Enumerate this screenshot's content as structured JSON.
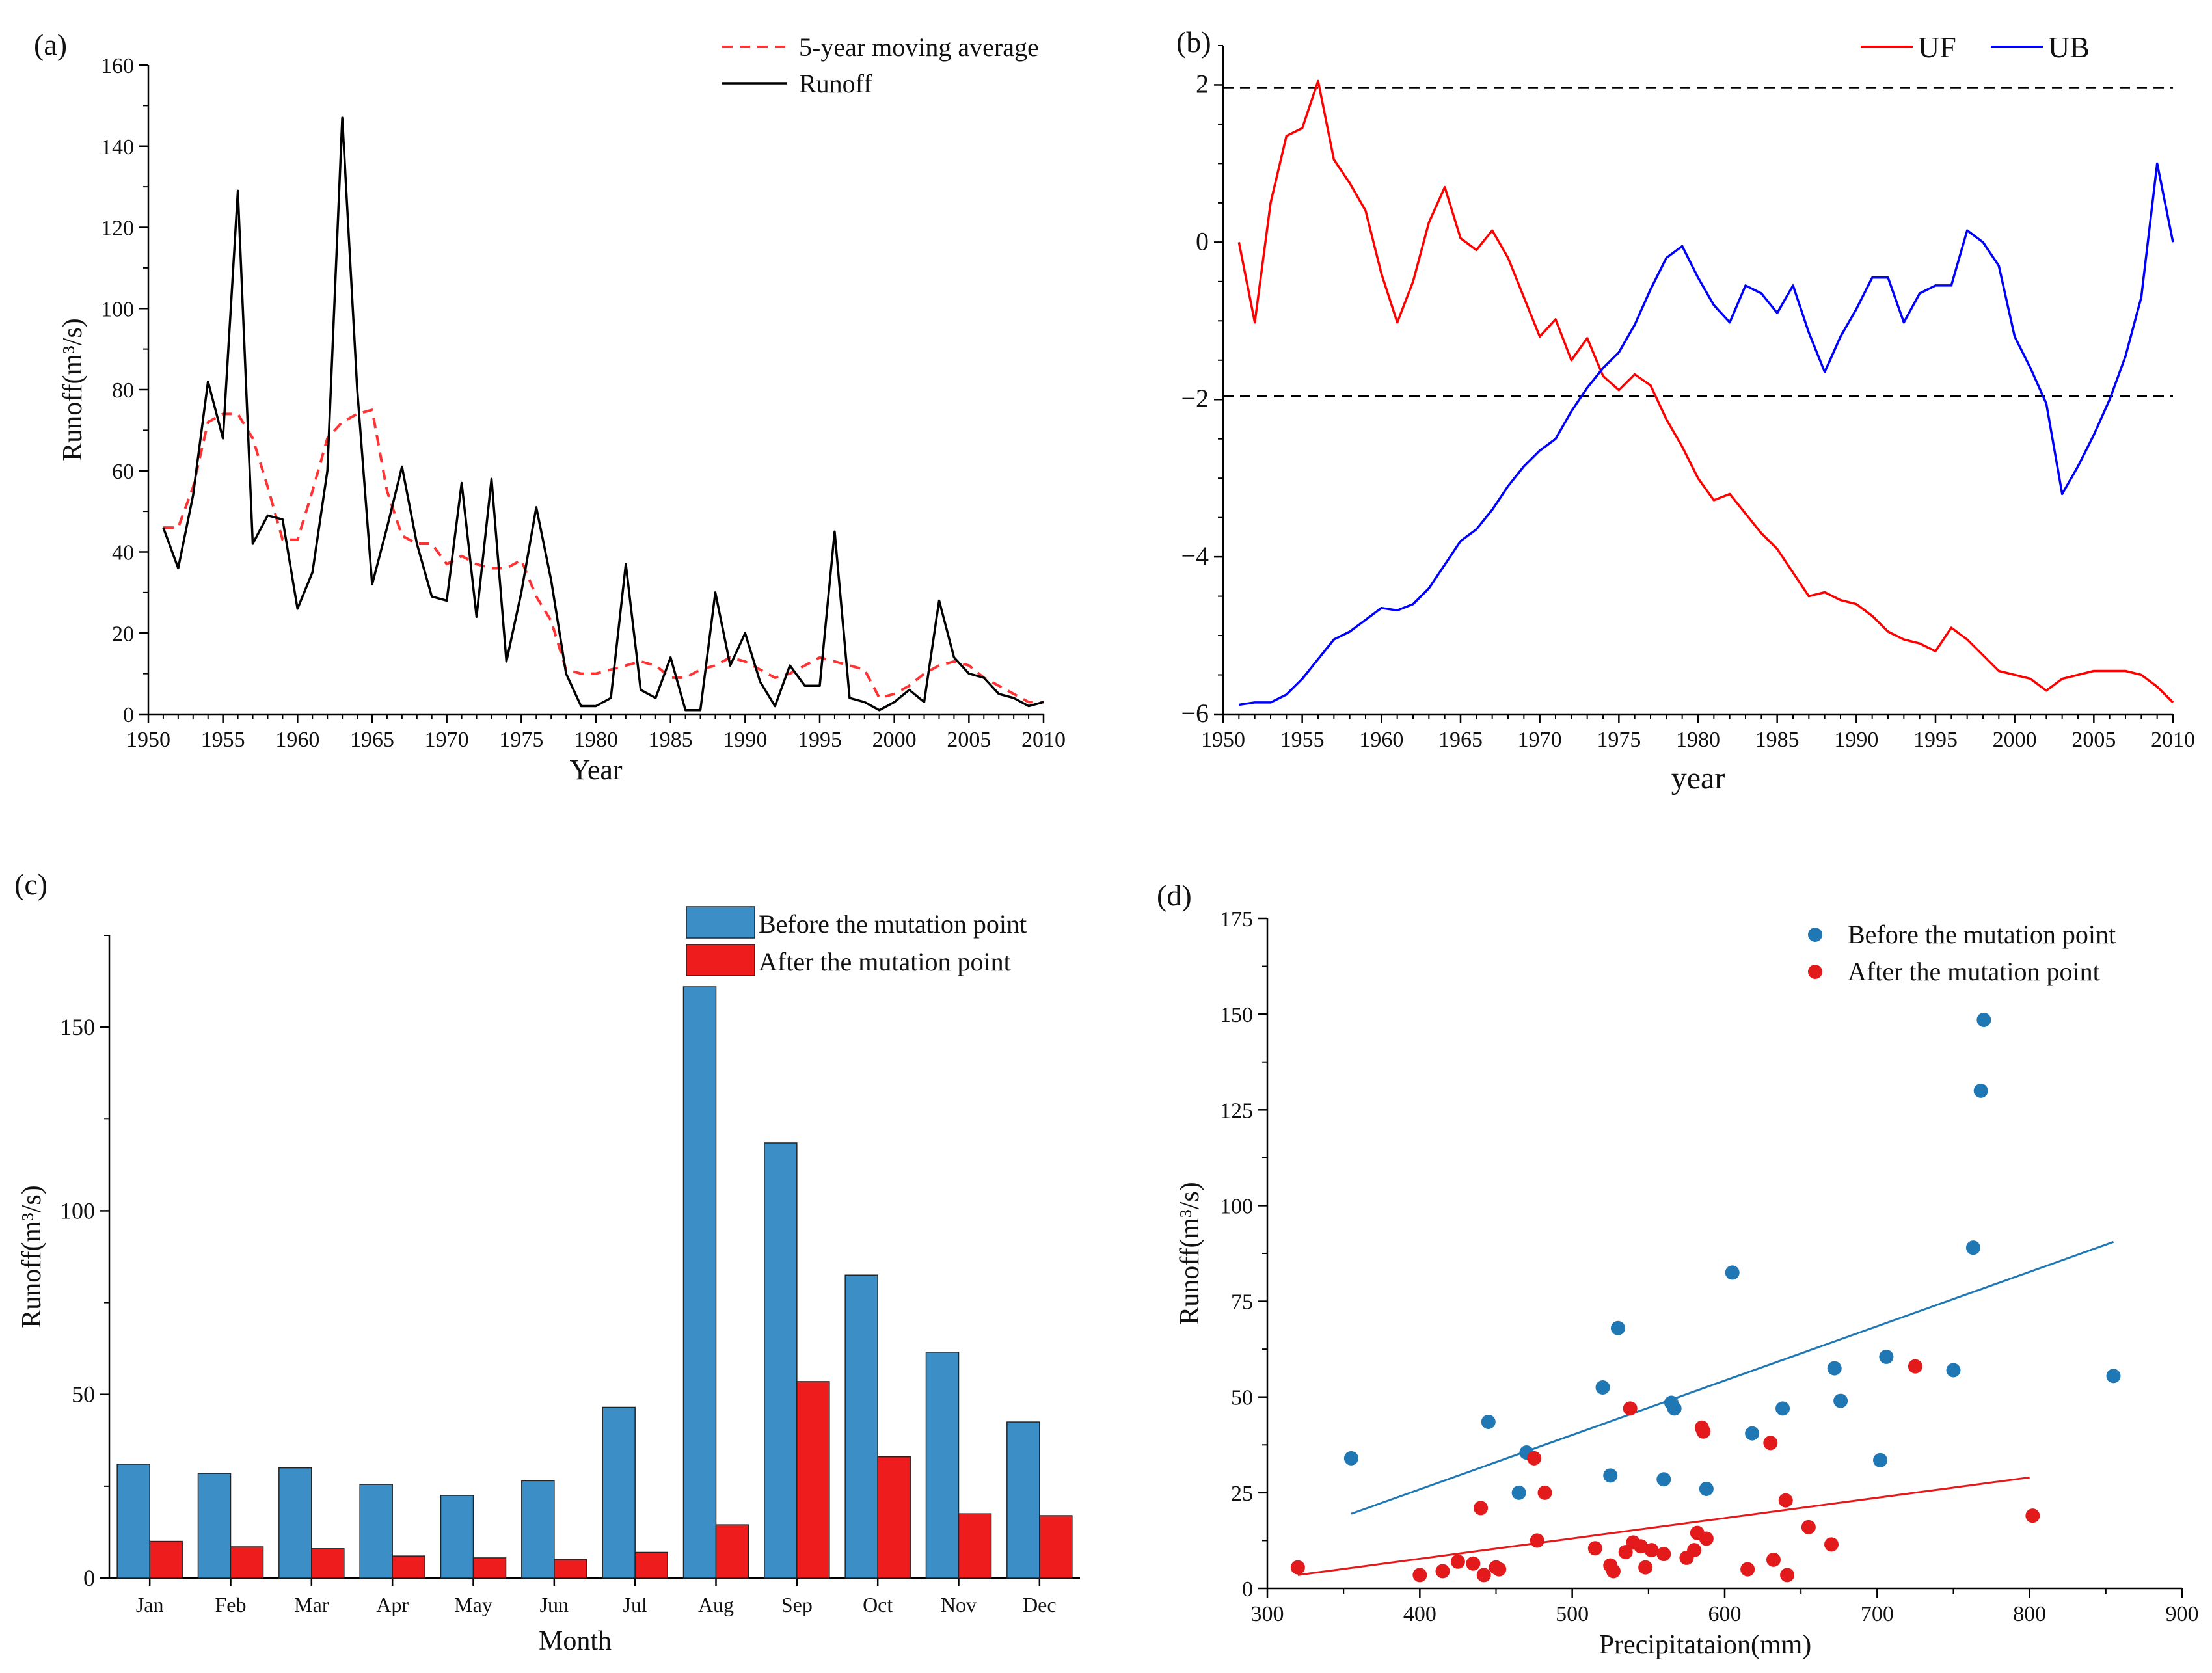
{
  "chart_data": [
    {
      "id": "a",
      "panel_label": "(a)",
      "type": "line",
      "xlabel": "Year",
      "ylabel": "Runoff(m³/s)",
      "xlim": [
        1950,
        2010
      ],
      "ylim": [
        0,
        160
      ],
      "xticks": [
        1950,
        1955,
        1960,
        1965,
        1970,
        1975,
        1980,
        1985,
        1990,
        1995,
        2000,
        2005,
        2010
      ],
      "yticks": [
        0,
        20,
        40,
        60,
        80,
        100,
        120,
        140,
        160
      ],
      "legend_position": "top-right",
      "series": [
        {
          "name": "5-year moving average",
          "color": "#ff3333",
          "style": "dashed",
          "x": [
            1951,
            1952,
            1953,
            1954,
            1955,
            1956,
            1957,
            1958,
            1959,
            1960,
            1961,
            1962,
            1963,
            1964,
            1965,
            1966,
            1967,
            1968,
            1969,
            1970,
            1971,
            1972,
            1973,
            1974,
            1975,
            1976,
            1977,
            1978,
            1979,
            1980,
            1981,
            1982,
            1983,
            1984,
            1985,
            1986,
            1987,
            1988,
            1989,
            1990,
            1991,
            1992,
            1993,
            1994,
            1995,
            1996,
            1997,
            1998,
            1999,
            2000,
            2001,
            2002,
            2003,
            2004,
            2005,
            2006,
            2007,
            2008,
            2009,
            2010
          ],
          "y": [
            46,
            46,
            56,
            72,
            74,
            74,
            68,
            56,
            43,
            43,
            55,
            68,
            72,
            74,
            75,
            55,
            44,
            42,
            42,
            37,
            39,
            37,
            36,
            36,
            38,
            29,
            23,
            11,
            10,
            10,
            11,
            12,
            13,
            12,
            9,
            9,
            11,
            12,
            14,
            13,
            11,
            9,
            10,
            12,
            14,
            13,
            12,
            11,
            4,
            5,
            7,
            10,
            12,
            13,
            12,
            9,
            7,
            5,
            3,
            3
          ]
        },
        {
          "name": "Runoff",
          "color": "#000000",
          "style": "solid",
          "x": [
            1951,
            1952,
            1953,
            1954,
            1955,
            1956,
            1957,
            1958,
            1959,
            1960,
            1961,
            1962,
            1963,
            1964,
            1965,
            1966,
            1967,
            1968,
            1969,
            1970,
            1971,
            1972,
            1973,
            1974,
            1975,
            1976,
            1977,
            1978,
            1979,
            1980,
            1981,
            1982,
            1983,
            1984,
            1985,
            1986,
            1987,
            1988,
            1989,
            1990,
            1991,
            1992,
            1993,
            1994,
            1995,
            1996,
            1997,
            1998,
            1999,
            2000,
            2001,
            2002,
            2003,
            2004,
            2005,
            2006,
            2007,
            2008,
            2009,
            2010
          ],
          "y": [
            46,
            36,
            54,
            82,
            68,
            129,
            42,
            49,
            48,
            26,
            35,
            60,
            147,
            80,
            32,
            46,
            61,
            42,
            29,
            28,
            57,
            24,
            58,
            13,
            30,
            51,
            33,
            10,
            2,
            2,
            4,
            37,
            6,
            4,
            14,
            1,
            1,
            30,
            12,
            20,
            8,
            2,
            12,
            7,
            7,
            45,
            4,
            3,
            1,
            3,
            6,
            3,
            28,
            14,
            10,
            9,
            5,
            4,
            2,
            3
          ]
        }
      ]
    },
    {
      "id": "b",
      "panel_label": "(b)",
      "type": "line",
      "xlabel": "year",
      "ylabel": "",
      "xlim": [
        1950,
        2010
      ],
      "ylim": [
        -6,
        2.5
      ],
      "xticks": [
        1950,
        1955,
        1960,
        1965,
        1970,
        1975,
        1980,
        1985,
        1990,
        1995,
        2000,
        2005,
        2010
      ],
      "yticks": [
        -6,
        -4,
        -2,
        0,
        2
      ],
      "ytick_labels": [
        "−6",
        "−4",
        "−2",
        "0",
        "2"
      ],
      "reference_lines": [
        1.96,
        -1.96
      ],
      "legend_position": "top-right",
      "series": [
        {
          "name": "UF",
          "color": "#ff0000",
          "x": [
            1951,
            1952,
            1953,
            1954,
            1955,
            1956,
            1957,
            1958,
            1959,
            1960,
            1961,
            1962,
            1963,
            1964,
            1965,
            1966,
            1967,
            1968,
            1969,
            1970,
            1971,
            1972,
            1973,
            1974,
            1975,
            1976,
            1977,
            1978,
            1979,
            1980,
            1981,
            1982,
            1983,
            1984,
            1985,
            1986,
            1987,
            1988,
            1989,
            1990,
            1991,
            1992,
            1993,
            1994,
            1995,
            1996,
            1997,
            1998,
            1999,
            2000,
            2001,
            2002,
            2003,
            2004,
            2005,
            2006,
            2007,
            2008,
            2009,
            2010
          ],
          "y": [
            0,
            -1.02,
            0.5,
            1.35,
            1.45,
            2.05,
            1.05,
            0.75,
            0.4,
            -0.4,
            -1.02,
            -0.5,
            0.25,
            0.7,
            0.05,
            -0.1,
            0.15,
            -0.2,
            -0.7,
            -1.2,
            -0.98,
            -1.5,
            -1.22,
            -1.7,
            -1.88,
            -1.68,
            -1.82,
            -2.25,
            -2.6,
            -3.0,
            -3.28,
            -3.2,
            -3.45,
            -3.7,
            -3.9,
            -4.2,
            -4.5,
            -4.45,
            -4.55,
            -4.6,
            -4.75,
            -4.95,
            -5.05,
            -5.1,
            -5.2,
            -4.9,
            -5.05,
            -5.25,
            -5.45,
            -5.5,
            -5.55,
            -5.7,
            -5.55,
            -5.5,
            -5.45,
            -5.45,
            -5.45,
            -5.5,
            -5.65,
            -5.85
          ]
        },
        {
          "name": "UB",
          "color": "#0000ff",
          "x": [
            1951,
            1952,
            1953,
            1954,
            1955,
            1956,
            1957,
            1958,
            1959,
            1960,
            1961,
            1962,
            1963,
            1964,
            1965,
            1966,
            1967,
            1968,
            1969,
            1970,
            1971,
            1972,
            1973,
            1974,
            1975,
            1976,
            1977,
            1978,
            1979,
            1980,
            1981,
            1982,
            1983,
            1984,
            1985,
            1986,
            1987,
            1988,
            1989,
            1990,
            1991,
            1992,
            1993,
            1994,
            1995,
            1996,
            1997,
            1998,
            1999,
            2000,
            2001,
            2002,
            2003,
            2004,
            2005,
            2006,
            2007,
            2008,
            2009,
            2010
          ],
          "y": [
            -5.88,
            -5.85,
            -5.85,
            -5.75,
            -5.55,
            -5.3,
            -5.05,
            -4.95,
            -4.8,
            -4.65,
            -4.68,
            -4.6,
            -4.4,
            -4.1,
            -3.8,
            -3.65,
            -3.4,
            -3.1,
            -2.85,
            -2.65,
            -2.5,
            -2.15,
            -1.85,
            -1.6,
            -1.4,
            -1.05,
            -0.6,
            -0.2,
            -0.05,
            -0.45,
            -0.8,
            -1.02,
            -0.55,
            -0.65,
            -0.9,
            -0.55,
            -1.15,
            -1.65,
            -1.2,
            -0.85,
            -0.45,
            -0.45,
            -1.02,
            -0.65,
            -0.55,
            -0.55,
            0.15,
            0.0,
            -0.3,
            -1.2,
            -1.6,
            -2.05,
            -3.2,
            -2.85,
            -2.45,
            -2.0,
            -1.45,
            -0.7,
            1.0,
            0.0
          ]
        }
      ]
    },
    {
      "id": "c",
      "panel_label": "(c)",
      "type": "bar",
      "xlabel": "Month",
      "ylabel": "Runoff(m³/s)",
      "ylim": [
        0,
        175
      ],
      "yticks": [
        0,
        50,
        100,
        150
      ],
      "categories": [
        "Jan",
        "Feb",
        "Mar",
        "Apr",
        "May",
        "Jun",
        "Jul",
        "Aug",
        "Sep",
        "Oct",
        "Nov",
        "Dec"
      ],
      "legend_position": "top-right",
      "series": [
        {
          "name": "Before the mutation point",
          "color": "#3b8fc6",
          "values": [
            31,
            28.5,
            30,
            25.5,
            22.5,
            26.5,
            46.5,
            161,
            118.5,
            82.5,
            61.5,
            42.5
          ]
        },
        {
          "name": "After the mutation point",
          "color": "#ee1c1c",
          "values": [
            10,
            8.5,
            8,
            6,
            5.5,
            5,
            7,
            14.5,
            53.5,
            33,
            17.5,
            17
          ]
        }
      ]
    },
    {
      "id": "d",
      "panel_label": "(d)",
      "type": "scatter",
      "xlabel": "Precipitataion(mm)",
      "ylabel": "Runoff(m³/s)",
      "xlim": [
        300,
        900
      ],
      "ylim": [
        0,
        175
      ],
      "xticks": [
        300,
        400,
        500,
        600,
        700,
        800,
        900
      ],
      "yticks": [
        0,
        25,
        50,
        75,
        100,
        125,
        150,
        175
      ],
      "legend_position": "top-right",
      "series": [
        {
          "name": "Before the mutation point",
          "color": "#1f77b4",
          "points": [
            [
              355,
              34
            ],
            [
              445,
              43.5
            ],
            [
              465,
              25
            ],
            [
              470,
              35.5
            ],
            [
              520,
              52.5
            ],
            [
              525,
              29.5
            ],
            [
              530,
              68
            ],
            [
              560,
              28.5
            ],
            [
              565,
              48.5
            ],
            [
              567,
              47
            ],
            [
              588,
              26
            ],
            [
              605,
              82.5
            ],
            [
              618,
              40.5
            ],
            [
              638,
              47
            ],
            [
              672,
              57.5
            ],
            [
              676,
              49
            ],
            [
              702,
              33.5
            ],
            [
              706,
              60.5
            ],
            [
              750,
              57
            ],
            [
              763,
              89
            ],
            [
              768,
              130
            ],
            [
              770,
              148.5
            ],
            [
              855,
              55.5
            ]
          ],
          "trend": [
            [
              355,
              19.5
            ],
            [
              855,
              90.5
            ]
          ]
        },
        {
          "name": "After the mutation point",
          "color": "#e31a1c",
          "points": [
            [
              320,
              5.5
            ],
            [
              400,
              3.5
            ],
            [
              415,
              4.5
            ],
            [
              425,
              7
            ],
            [
              435,
              6.5
            ],
            [
              440,
              21
            ],
            [
              442,
              3.5
            ],
            [
              450,
              5.5
            ],
            [
              452,
              5
            ],
            [
              475,
              34
            ],
            [
              477,
              12.5
            ],
            [
              482,
              25
            ],
            [
              515,
              10.5
            ],
            [
              525,
              6
            ],
            [
              527,
              4.5
            ],
            [
              535,
              9.5
            ],
            [
              538,
              47
            ],
            [
              540,
              12
            ],
            [
              545,
              11
            ],
            [
              548,
              5.5
            ],
            [
              552,
              10
            ],
            [
              560,
              9
            ],
            [
              575,
              8
            ],
            [
              580,
              10
            ],
            [
              582,
              14.5
            ],
            [
              585,
              42
            ],
            [
              586,
              41
            ],
            [
              588,
              13
            ],
            [
              615,
              5
            ],
            [
              630,
              38
            ],
            [
              632,
              7.5
            ],
            [
              640,
              23
            ],
            [
              641,
              3.5
            ],
            [
              655,
              16
            ],
            [
              670,
              11.5
            ],
            [
              725,
              58
            ],
            [
              802,
              19
            ]
          ],
          "trend": [
            [
              320,
              3.5
            ],
            [
              800,
              29
            ]
          ]
        }
      ]
    }
  ]
}
